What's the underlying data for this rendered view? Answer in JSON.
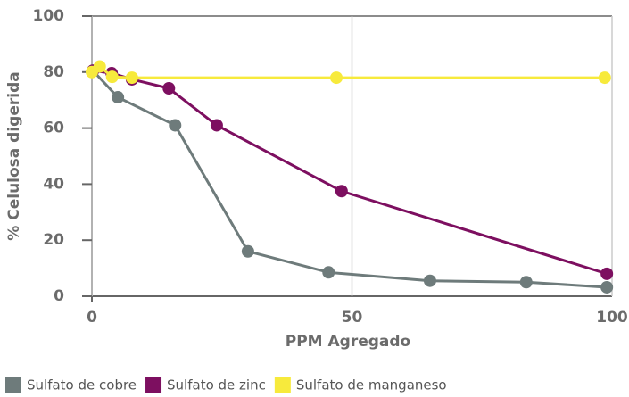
{
  "chart_data": {
    "type": "line",
    "xlabel": "PPM Agregado",
    "ylabel": "% Celulosa digerida",
    "xlim": [
      0,
      100
    ],
    "xticks": [
      0,
      50,
      100
    ],
    "ylim": [
      0,
      100
    ],
    "yticks": [
      0,
      20,
      40,
      60,
      80,
      100
    ],
    "grid": "x",
    "legend": "bottom",
    "series": [
      {
        "name": "Sulfato de cobre",
        "color": "#6e7b7b",
        "x": [
          0.2,
          5,
          16,
          30,
          45.5,
          65,
          83.5,
          99
        ],
        "values": [
          80.5,
          71,
          61,
          16,
          8.5,
          5.5,
          5,
          3.2
        ]
      },
      {
        "name": "Sulfato de zinc",
        "color": "#7d0f60",
        "x": [
          0.2,
          3.8,
          7.7,
          14.8,
          24,
          48,
          99
        ],
        "values": [
          80.5,
          79.6,
          77.4,
          74.2,
          61,
          37.5,
          8
        ]
      },
      {
        "name": "Sulfato de manganeso",
        "color": "#f7ea3c",
        "x": [
          0,
          1.5,
          3.9,
          7.7,
          47,
          98.6
        ],
        "values": [
          80,
          82,
          78.3,
          78,
          78,
          78
        ]
      }
    ]
  }
}
